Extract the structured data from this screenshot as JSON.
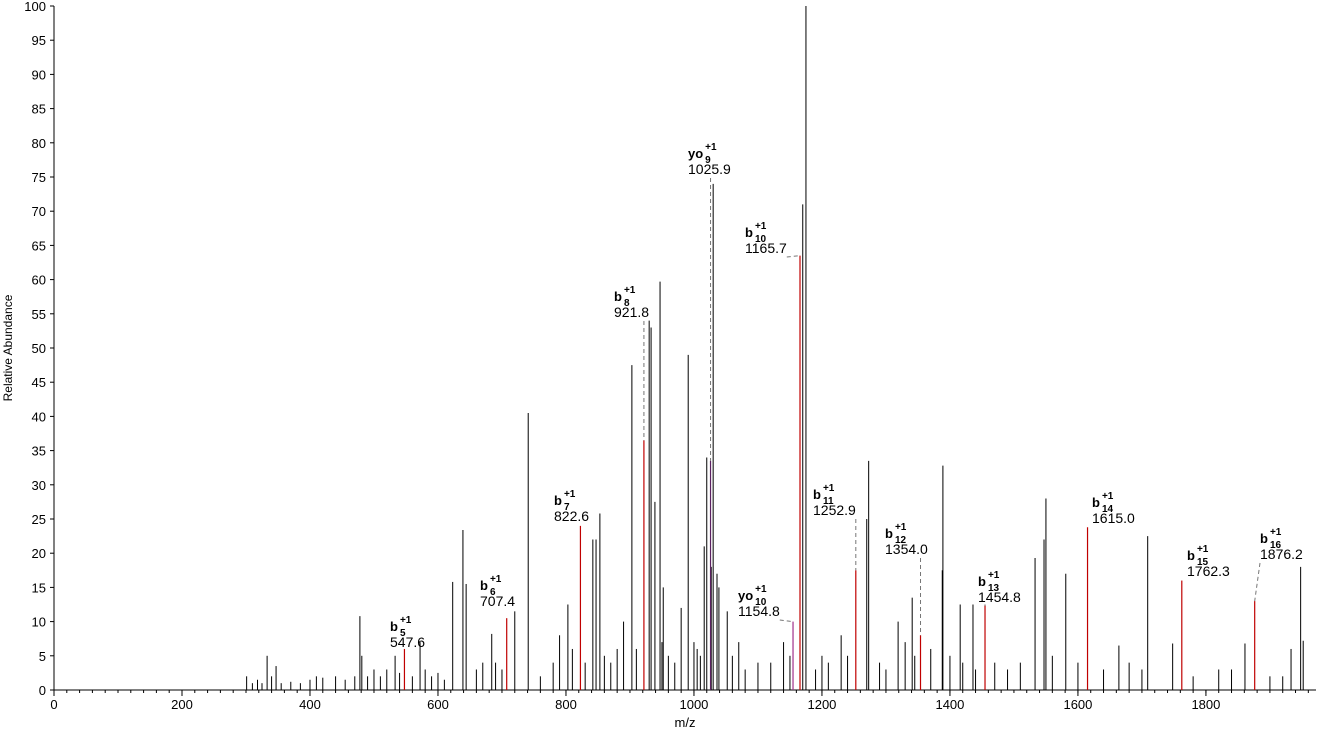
{
  "chart_data": {
    "type": "spectrum",
    "xlabel": "m/z",
    "ylabel": "Relative Abundance",
    "xlim": [
      0,
      1972
    ],
    "ylim": [
      0,
      100
    ],
    "xticks": [
      0,
      200,
      400,
      600,
      800,
      1000,
      1200,
      1400,
      1600,
      1800
    ],
    "xminorticks": [
      0,
      20,
      40,
      60,
      80,
      100,
      120,
      140,
      160,
      180,
      200,
      220,
      240,
      260,
      280,
      300,
      320,
      340,
      360,
      380,
      400,
      420,
      440,
      460,
      480,
      500,
      520,
      540,
      560,
      580,
      600,
      620,
      640,
      660,
      680,
      700,
      720,
      740,
      760,
      780,
      800,
      820,
      840,
      860,
      880,
      900,
      920,
      940,
      960,
      980,
      1000,
      1020,
      1040,
      1060,
      1080,
      1100,
      1120,
      1140,
      1160,
      1180,
      1200,
      1220,
      1240,
      1260,
      1280,
      1300,
      1320,
      1340,
      1360,
      1380,
      1400,
      1420,
      1440,
      1460,
      1480,
      1500,
      1520,
      1540,
      1560,
      1580,
      1600,
      1620,
      1640,
      1660,
      1680,
      1700,
      1720,
      1740,
      1760,
      1780,
      1800,
      1820,
      1840,
      1860,
      1880,
      1900,
      1920,
      1940,
      1960
    ],
    "yticks": [
      0,
      5,
      10,
      15,
      20,
      25,
      30,
      35,
      40,
      45,
      50,
      55,
      60,
      65,
      70,
      75,
      80,
      85,
      90,
      95,
      100
    ],
    "peaks": {
      "color": "#000000",
      "x": [
        301,
        333,
        347,
        478,
        481,
        533,
        572,
        623,
        639,
        644,
        684,
        720,
        741,
        803,
        842,
        847,
        853,
        903,
        930,
        933,
        939,
        947,
        952,
        991,
        1016,
        1020,
        1027,
        1030,
        1036,
        1039,
        1052,
        1170,
        1175,
        1270,
        1273,
        1319,
        1341,
        1388,
        1389,
        1416,
        1436,
        1533,
        1547,
        1550,
        1581,
        1664,
        1709,
        1748,
        1861,
        1933,
        1948,
        1952,
        310,
        318,
        325,
        340,
        355,
        370,
        385,
        400,
        410,
        420,
        440,
        455,
        470,
        490,
        500,
        510,
        520,
        540,
        560,
        580,
        590,
        600,
        610,
        660,
        670,
        690,
        700,
        760,
        780,
        790,
        810,
        830,
        860,
        870,
        880,
        890,
        910,
        950,
        960,
        970,
        980,
        1000,
        1005,
        1010,
        1060,
        1070,
        1080,
        1100,
        1120,
        1140,
        1150,
        1190,
        1200,
        1210,
        1230,
        1240,
        1290,
        1300,
        1330,
        1345,
        1370,
        1400,
        1420,
        1440,
        1470,
        1490,
        1510,
        1560,
        1600,
        1640,
        1680,
        1700,
        1780,
        1820,
        1840,
        1900,
        1920
      ],
      "values": [
        2,
        5,
        3.5,
        10.8,
        5,
        5,
        7,
        15.8,
        23.4,
        15.5,
        8.2,
        11.5,
        40.5,
        12.5,
        22,
        22,
        25.8,
        47.5,
        54,
        53,
        27.5,
        59.7,
        15,
        49,
        21,
        34,
        18,
        74,
        17,
        15,
        11.5,
        71,
        100,
        25,
        33.5,
        10,
        13.5,
        17.5,
        32.8,
        12.5,
        12.5,
        19.3,
        22,
        28,
        17,
        6.5,
        22.5,
        6.8,
        6.8,
        6,
        18,
        7.2,
        1,
        1.5,
        1,
        2,
        1,
        1.2,
        1,
        1.5,
        2,
        1.8,
        2,
        1.5,
        2,
        2,
        3,
        2,
        3,
        2.5,
        2,
        3,
        2,
        2.5,
        1.5,
        3,
        4,
        4,
        3,
        2,
        4,
        8,
        6,
        4,
        5,
        4,
        6,
        10,
        6,
        7,
        5,
        4,
        12,
        7,
        6,
        5,
        5,
        7,
        3,
        4,
        4,
        7,
        5,
        3,
        5,
        4,
        8,
        5,
        4,
        3,
        7,
        5,
        6,
        5,
        4,
        3,
        4,
        3,
        4,
        5,
        4,
        3,
        4,
        3,
        2,
        3,
        3,
        2,
        2
      ]
    },
    "annotations": {
      "x": [
        547.6,
        707.4,
        822.6,
        921.8,
        1025.9,
        1165.7,
        1154.8,
        1252.9,
        1354.0,
        1454.8,
        1615.0,
        1762.3,
        1876.2
      ],
      "x_labels": [
        "547.6",
        "707.4",
        "822.6",
        "921.8",
        "1025.9",
        "1165.7",
        "1154.8",
        "1252.9",
        "1354.0",
        "1454.8",
        "1615.0",
        "1762.3",
        "1876.2"
      ],
      "values": [
        6,
        10.5,
        24,
        36.5,
        33.5,
        63.5,
        10,
        17.5,
        8,
        12.5,
        23.8,
        16,
        13
      ],
      "ion": [
        "b",
        "b",
        "b",
        "b",
        "yo",
        "b",
        "yo",
        "b",
        "b",
        "b",
        "b",
        "b",
        "b"
      ],
      "index": [
        "5",
        "6",
        "7",
        "8",
        "9",
        "10",
        "10",
        "11",
        "12",
        "13",
        "14",
        "15",
        "16"
      ],
      "charge": [
        "+1",
        "+1",
        "+1",
        "+1",
        "+1",
        "+1",
        "+1",
        "+1",
        "+1",
        "+1",
        "+1",
        "+1",
        "+1"
      ],
      "colors": [
        "#c00000",
        "#c00000",
        "#c00000",
        "#c00000",
        "#5a2060",
        "#c00000",
        "#a0308a",
        "#c00000",
        "#c00000",
        "#c00000",
        "#c00000",
        "#c00000",
        "#c00000"
      ]
    }
  }
}
